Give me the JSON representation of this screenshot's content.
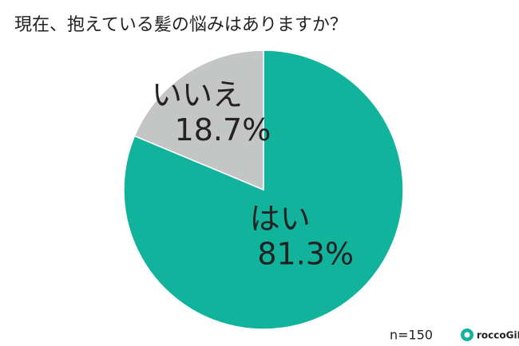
{
  "chart_data": {
    "type": "pie",
    "title": "現在、抱えている髪の悩みはありますか？",
    "categories": [
      "はい",
      "いいえ"
    ],
    "values": [
      81.3,
      18.7
    ],
    "value_labels": [
      "81.3%",
      "18.7%"
    ],
    "colors": [
      "#12b39c",
      "#c4c6c6"
    ],
    "note": "n=150"
  },
  "brand": "roccoGiRL"
}
